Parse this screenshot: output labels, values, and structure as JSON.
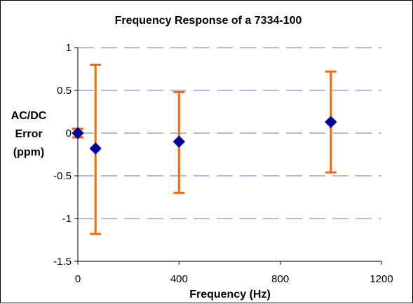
{
  "chart_data": {
    "type": "scatter",
    "title": "Frequency Response of a 7334-100",
    "xlabel": "Frequency (Hz)",
    "ylabel_lines": [
      "AC/DC",
      "Error",
      "(ppm)"
    ],
    "xlim": [
      0,
      1200
    ],
    "ylim": [
      -1.5,
      1
    ],
    "x_ticks": [
      0,
      400,
      800,
      1200
    ],
    "x_tick_labels": [
      "0",
      "400",
      "800",
      "1200"
    ],
    "y_ticks": [
      1,
      0.5,
      0,
      -0.5,
      -1,
      -1.5
    ],
    "y_tick_labels": [
      "1",
      "0.5",
      "0",
      "-0.5",
      "-1",
      "-1.5"
    ],
    "grid": "horizontal-dashed",
    "legend": "none",
    "series": [
      {
        "points": [
          {
            "x": 0,
            "y": 0,
            "err_low": -0.05,
            "err_high": 0.05
          },
          {
            "x": 70,
            "y": -0.18,
            "err_low": -1.18,
            "err_high": 0.8
          },
          {
            "x": 400,
            "y": -0.1,
            "err_low": -0.7,
            "err_high": 0.48
          },
          {
            "x": 1000,
            "y": 0.13,
            "err_low": -0.46,
            "err_high": 0.72
          }
        ],
        "marker_color": "#000099",
        "error_bar_color": "#ff6600"
      }
    ],
    "grid_color": "#6677cc"
  }
}
